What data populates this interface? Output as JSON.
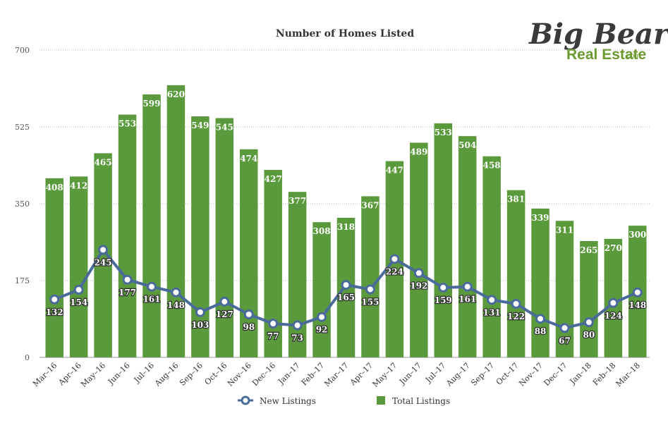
{
  "chart_data": {
    "type": "bar",
    "title": "Number of Homes Listed",
    "categories": [
      "Mar–16",
      "Apr–16",
      "May–16",
      "Jun–16",
      "Jul–16",
      "Aug–16",
      "Sep–16",
      "Oct–16",
      "Nov–16",
      "Dec–16",
      "Jan–17",
      "Feb–17",
      "Mar–17",
      "Apr–17",
      "May–17",
      "Jun–17",
      "Jul–17",
      "Aug–17",
      "Sep–17",
      "Oct–17",
      "Nov–17",
      "Dec–17",
      "Jan–18",
      "Feb–18",
      "Mar–18"
    ],
    "series": [
      {
        "name": "Total Listings",
        "type": "bar",
        "color": "#5a9a3c",
        "values": [
          408,
          412,
          465,
          553,
          599,
          620,
          549,
          545,
          474,
          427,
          377,
          308,
          318,
          367,
          447,
          489,
          533,
          504,
          458,
          381,
          339,
          311,
          265,
          270,
          300
        ]
      },
      {
        "name": "New Listings",
        "type": "line",
        "color": "#4a6a9a",
        "values": [
          132,
          154,
          245,
          177,
          161,
          148,
          103,
          127,
          98,
          77,
          73,
          92,
          165,
          155,
          224,
          192,
          159,
          161,
          131,
          122,
          88,
          67,
          80,
          124,
          148
        ]
      }
    ],
    "ylim": [
      0,
      700
    ],
    "yticks": [
      0,
      175,
      350,
      525,
      700
    ],
    "grid": true,
    "legend": "bottom"
  },
  "logo": {
    "line1": "Big Bear",
    "line2": "Real Estate",
    "suffix": ".com"
  }
}
